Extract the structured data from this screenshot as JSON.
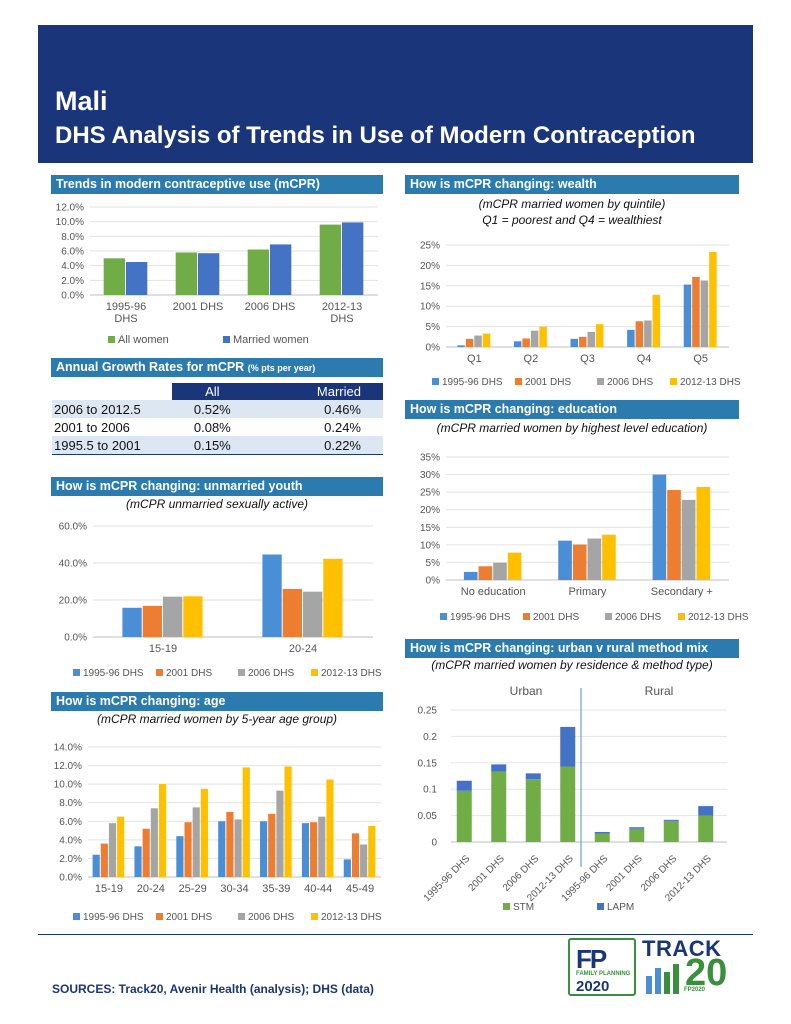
{
  "header": {
    "country": "Mali",
    "subtitle": "DHS Analysis of Trends in Use of Modern Contraception"
  },
  "sections": {
    "trends": "Trends in modern contraceptive use (mCPR)",
    "growth": "Annual Growth Rates for mCPR",
    "growth_small": "(% pts per year)",
    "youth": "How is mCPR changing: unmarried youth",
    "youth_note": "(mCPR unmarried sexually active)",
    "age": "How is mCPR changing: age",
    "age_note": "(mCPR married women by 5-year age group)",
    "wealth": "How is mCPR changing: wealth",
    "wealth_note1": "(mCPR married women by quintile)",
    "wealth_note2": "Q1 = poorest and Q4 = wealthiest",
    "education": "How is mCPR changing: education",
    "education_note": "(mCPR married women by highest level education)",
    "urban": "How is mCPR changing: urban v rural method mix",
    "urban_note": "(mCPR married women by residence & method type)"
  },
  "growth_table": {
    "headers": [
      "All",
      "Married"
    ],
    "rows": [
      {
        "label": "2006 to 2012.5",
        "all": "0.52%",
        "married": "0.46%"
      },
      {
        "label": "2001 to 2006",
        "all": "0.08%",
        "married": "0.24%"
      },
      {
        "label": "1995.5 to 2001",
        "all": "0.15%",
        "married": "0.22%"
      }
    ]
  },
  "footer": {
    "sources": "SOURCES: Track20, Avenir Health (analysis); DHS (data)"
  },
  "logos": {
    "fp_text": "FP",
    "fp_sub": "FAMILY PLANNING",
    "fp_year": "2020",
    "track_text": "TRACK",
    "track_num": "20",
    "track_sub": "FP2020"
  },
  "colors": {
    "navy": "#1a3579",
    "section": "#2c7bae",
    "blue": "#4a8fd6",
    "orange": "#ed7d31",
    "gray": "#a5a5a5",
    "yellow": "#ffc000",
    "green": "#70ad47",
    "dblue": "#4472c4",
    "track_green": "#3a8f3d"
  },
  "chart_data": [
    {
      "id": "trends",
      "type": "bar",
      "title": "Trends in modern contraceptive use (mCPR)",
      "categories": [
        [
          "1995-96",
          "DHS"
        ],
        [
          "2001 DHS"
        ],
        [
          "2006 DHS"
        ],
        [
          "2012-13",
          "DHS"
        ]
      ],
      "series": [
        {
          "name": "All women",
          "color": "#70ad47",
          "values": [
            5.0,
            5.8,
            6.2,
            9.6
          ]
        },
        {
          "name": "Married women",
          "color": "#4472c4",
          "values": [
            4.5,
            5.7,
            6.9,
            9.9
          ]
        }
      ],
      "ylim": [
        0,
        12
      ],
      "yticks": [
        "0.0%",
        "2.0%",
        "4.0%",
        "6.0%",
        "8.0%",
        "10.0%",
        "12.0%"
      ],
      "ytick_values": [
        0,
        2,
        4,
        6,
        8,
        10,
        12
      ]
    },
    {
      "id": "youth",
      "type": "bar",
      "title": "How is mCPR changing: unmarried youth",
      "categories": [
        [
          "15-19"
        ],
        [
          "20-24"
        ]
      ],
      "series": [
        {
          "name": "1995-96 DHS",
          "color": "#4a8fd6",
          "values": [
            15.8,
            44.6
          ]
        },
        {
          "name": "2001 DHS",
          "color": "#ed7d31",
          "values": [
            16.8,
            26.0
          ]
        },
        {
          "name": "2006 DHS",
          "color": "#a5a5a5",
          "values": [
            21.8,
            24.5
          ]
        },
        {
          "name": "2012-13 DHS",
          "color": "#ffc000",
          "values": [
            22.0,
            42.3
          ]
        }
      ],
      "ylim": [
        0,
        60
      ],
      "yticks": [
        "0.0%",
        "20.0%",
        "40.0%",
        "60.0%"
      ],
      "ytick_values": [
        0,
        20,
        40,
        60
      ]
    },
    {
      "id": "age",
      "type": "bar",
      "title": "How is mCPR changing: age",
      "categories": [
        [
          "15-19"
        ],
        [
          "20-24"
        ],
        [
          "25-29"
        ],
        [
          "30-34"
        ],
        [
          "35-39"
        ],
        [
          "40-44"
        ],
        [
          "45-49"
        ]
      ],
      "series": [
        {
          "name": "1995-96 DHS",
          "color": "#4a8fd6",
          "values": [
            2.4,
            3.3,
            4.4,
            6.0,
            6.0,
            5.8,
            1.9
          ]
        },
        {
          "name": "2001 DHS",
          "color": "#ed7d31",
          "values": [
            3.6,
            5.2,
            5.9,
            7.0,
            6.8,
            5.9,
            4.7
          ]
        },
        {
          "name": "2006 DHS",
          "color": "#a5a5a5",
          "values": [
            5.8,
            7.4,
            7.5,
            6.2,
            9.3,
            6.5,
            3.5
          ]
        },
        {
          "name": "2012-13 DHS",
          "color": "#ffc000",
          "values": [
            6.5,
            10.0,
            9.5,
            11.8,
            11.9,
            10.5,
            5.5
          ]
        }
      ],
      "ylim": [
        0,
        14
      ],
      "yticks": [
        "0.0%",
        "2.0%",
        "4.0%",
        "6.0%",
        "8.0%",
        "10.0%",
        "12.0%",
        "14.0%"
      ],
      "ytick_values": [
        0,
        2,
        4,
        6,
        8,
        10,
        12,
        14
      ]
    },
    {
      "id": "wealth",
      "type": "bar",
      "title": "How is mCPR changing: wealth",
      "categories": [
        [
          "Q1"
        ],
        [
          "Q2"
        ],
        [
          "Q3"
        ],
        [
          "Q4"
        ],
        [
          "Q5"
        ]
      ],
      "series": [
        {
          "name": "1995-96 DHS",
          "color": "#4a8fd6",
          "values": [
            0.4,
            1.4,
            2.0,
            4.2,
            15.3
          ]
        },
        {
          "name": "2001 DHS",
          "color": "#ed7d31",
          "values": [
            2.0,
            2.1,
            2.5,
            6.3,
            17.2
          ]
        },
        {
          "name": "2006 DHS",
          "color": "#a5a5a5",
          "values": [
            2.8,
            4.0,
            3.7,
            6.5,
            16.3
          ]
        },
        {
          "name": "2012-13 DHS",
          "color": "#ffc000",
          "values": [
            3.3,
            5.0,
            5.6,
            12.8,
            23.3
          ]
        }
      ],
      "ylim": [
        0,
        25
      ],
      "yticks": [
        "0%",
        "5%",
        "10%",
        "15%",
        "20%",
        "25%"
      ],
      "ytick_values": [
        0,
        5,
        10,
        15,
        20,
        25
      ]
    },
    {
      "id": "education",
      "type": "bar",
      "title": "How is mCPR changing: education",
      "categories": [
        [
          "No education"
        ],
        [
          "Primary"
        ],
        [
          "Secondary +"
        ]
      ],
      "series": [
        {
          "name": "1995-96 DHS",
          "color": "#4a8fd6",
          "values": [
            2.3,
            11.2,
            30.0
          ]
        },
        {
          "name": "2001 DHS",
          "color": "#ed7d31",
          "values": [
            3.9,
            10.1,
            25.6
          ]
        },
        {
          "name": "2006 DHS",
          "color": "#a5a5a5",
          "values": [
            4.9,
            11.8,
            22.8
          ]
        },
        {
          "name": "2012-13 DHS",
          "color": "#ffc000",
          "values": [
            7.8,
            12.9,
            26.5
          ]
        }
      ],
      "ylim": [
        0,
        35
      ],
      "yticks": [
        "0%",
        "5%",
        "10%",
        "15%",
        "20%",
        "25%",
        "30%",
        "35%"
      ],
      "ytick_values": [
        0,
        5,
        10,
        15,
        20,
        25,
        30,
        35
      ]
    },
    {
      "id": "urban",
      "type": "stacked-bar",
      "title": "How is mCPR changing: urban v rural method mix",
      "groups": [
        "Urban",
        "Rural"
      ],
      "categories": [
        [
          "1995-96 DHS"
        ],
        [
          "2001 DHS"
        ],
        [
          "2006 DHS"
        ],
        [
          "2012-13 DHS"
        ],
        [
          "1995-96 DHS"
        ],
        [
          "2001 DHS"
        ],
        [
          "2006 DHS"
        ],
        [
          "2012-13 DHS"
        ]
      ],
      "series": [
        {
          "name": "STM",
          "color": "#70ad47",
          "values": [
            0.097,
            0.133,
            0.119,
            0.143,
            0.016,
            0.025,
            0.04,
            0.05
          ]
        },
        {
          "name": "LAPM",
          "color": "#4472c4",
          "values": [
            0.019,
            0.014,
            0.011,
            0.075,
            0.003,
            0.003,
            0.002,
            0.018
          ]
        }
      ],
      "ylim": [
        0,
        0.25
      ],
      "yticks": [
        "0",
        "0.05",
        "0.1",
        "0.15",
        "0.2",
        "0.25"
      ],
      "ytick_values": [
        0,
        0.05,
        0.1,
        0.15,
        0.2,
        0.25
      ]
    }
  ]
}
